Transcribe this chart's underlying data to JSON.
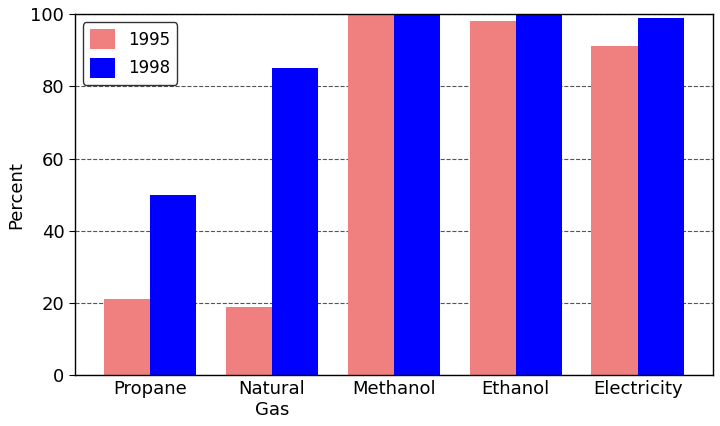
{
  "categories": [
    "Propane",
    "Natural\nGas",
    "Methanol",
    "Ethanol",
    "Electricity"
  ],
  "values_1995": [
    21,
    19,
    100,
    98,
    91
  ],
  "values_1998": [
    50,
    85,
    100,
    100,
    99
  ],
  "color_1995": "#F08080",
  "color_1998": "#0000FF",
  "ylabel": "Percent",
  "ylim": [
    0,
    100
  ],
  "yticks": [
    0,
    20,
    40,
    60,
    80,
    100
  ],
  "legend_labels": [
    "1995",
    "1998"
  ],
  "bar_width": 0.38,
  "grid_color": "#555555",
  "bg_color": "#FFFFFF",
  "axis_fontsize": 13,
  "tick_fontsize": 13,
  "legend_fontsize": 12
}
